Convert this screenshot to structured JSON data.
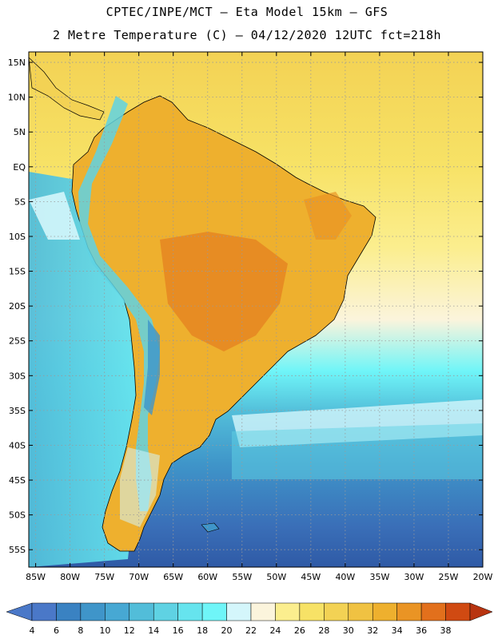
{
  "header": {
    "line1": "CPTEC/INPE/MCT –  Eta Model 15km – GFS",
    "line2": "2 Metre Temperature (C) – 04/12/2020 12UTC fct=218h"
  },
  "axes": {
    "lat_labels": [
      "15N",
      "10N",
      "5N",
      "EQ",
      "5S",
      "10S",
      "15S",
      "20S",
      "25S",
      "30S",
      "35S",
      "40S",
      "45S",
      "50S",
      "55S"
    ],
    "lat_values": [
      15,
      10,
      5,
      0,
      -5,
      -10,
      -15,
      -20,
      -25,
      -30,
      -35,
      -40,
      -45,
      -50,
      -55
    ],
    "lon_labels": [
      "85W",
      "80W",
      "75W",
      "70W",
      "65W",
      "60W",
      "55W",
      "50W",
      "45W",
      "40W",
      "35W",
      "30W",
      "25W",
      "20W"
    ],
    "lon_values": [
      -85,
      -80,
      -75,
      -70,
      -65,
      -60,
      -55,
      -50,
      -45,
      -40,
      -35,
      -30,
      -25,
      -20
    ],
    "lat_range": [
      -57.5,
      16.5
    ],
    "lon_range": [
      -86,
      -20
    ]
  },
  "colorbar": {
    "labels": [
      "4",
      "6",
      "8",
      "10",
      "12",
      "14",
      "16",
      "18",
      "20",
      "22",
      "24",
      "26",
      "28",
      "30",
      "32",
      "34",
      "36",
      "38"
    ],
    "colors": [
      "#4a78c8",
      "#3a82c2",
      "#3f95c9",
      "#47a8d3",
      "#52bdd9",
      "#5fd2e3",
      "#66e4ee",
      "#6ff5f8",
      "#d4f6fb",
      "#fbf4dc",
      "#fbee8e",
      "#f7e266",
      "#f3d254",
      "#f0c242",
      "#eeb02e",
      "#ea9424",
      "#e2701c",
      "#d04a12",
      "#b83410"
    ]
  }
}
